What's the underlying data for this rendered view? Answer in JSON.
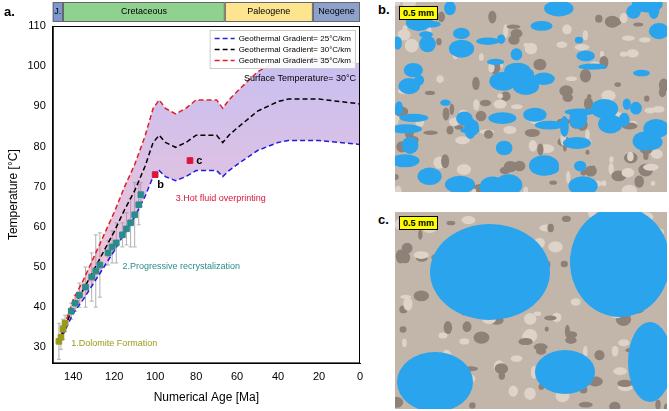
{
  "chart_data": {
    "type": "line",
    "panel": "a.",
    "x_label": "Numerical Age [Ma]",
    "y_label": "Temperature [°C]",
    "xlim": [
      150,
      0
    ],
    "xticks": [
      140,
      120,
      100,
      80,
      60,
      40,
      20,
      0
    ],
    "ylim": [
      110,
      26
    ],
    "yticks": [
      30,
      40,
      50,
      60,
      70,
      80,
      90,
      100,
      110
    ],
    "grid": false,
    "legend": "upper right",
    "note": "Surface Temperature= 30°C",
    "periods": [
      {
        "name": "J.",
        "start": 150,
        "end": 145,
        "color": "#7f97d0"
      },
      {
        "name": "Cretaceous",
        "start": 145,
        "end": 66,
        "color": "#8fd18f"
      },
      {
        "name": "Paleogene",
        "start": 66,
        "end": 23,
        "color": "#fde48f"
      },
      {
        "name": "Neogene",
        "start": 23,
        "end": 0,
        "color": "#8ea0cc"
      }
    ],
    "series": [
      {
        "name": "Geothermal Gradient= 25°C/km",
        "color": "#1f1fe0",
        "line_style": "dashed",
        "x": [
          147,
          140,
          135,
          130,
          125,
          120,
          115,
          110,
          105,
          101,
          98,
          95,
          90,
          85,
          80,
          75,
          70,
          67,
          64,
          60,
          50,
          40,
          35,
          20,
          0
        ],
        "values": [
          31,
          38.5,
          42,
          46,
          50,
          54,
          58.5,
          62.5,
          67.5,
          72.5,
          74,
          72.5,
          71.5,
          72.5,
          74,
          74,
          74,
          72.5,
          74,
          75.5,
          79,
          81,
          81.5,
          81.5,
          80.5
        ]
      },
      {
        "name": "Geothermal Gradient= 30°C/km",
        "color": "#000000",
        "line_style": "dashed",
        "x": [
          147,
          140,
          135,
          130,
          125,
          120,
          115,
          110,
          105,
          101,
          98,
          95,
          90,
          85,
          80,
          75,
          70,
          67,
          64,
          60,
          50,
          40,
          35,
          20,
          0
        ],
        "values": [
          31.2,
          40.2,
          44.4,
          49.2,
          54,
          58.8,
          64.2,
          69,
          75,
          81,
          82.8,
          81,
          79.8,
          81,
          82.8,
          82.8,
          82.8,
          81,
          82.8,
          84.6,
          88.8,
          91.2,
          91.8,
          91.8,
          90.6
        ]
      },
      {
        "name": "Geothermal Gradient= 35°C/km",
        "color": "#e02020",
        "line_style": "dashed",
        "x": [
          147,
          140,
          135,
          130,
          125,
          120,
          115,
          110,
          105,
          101,
          98,
          95,
          90,
          85,
          80,
          75,
          70,
          67,
          64,
          60,
          50,
          40,
          35,
          20,
          0
        ],
        "values": [
          31.4,
          41.9,
          46.8,
          52.4,
          58,
          63.6,
          69.9,
          75.5,
          82.5,
          89.5,
          91.6,
          89.5,
          88.1,
          89.5,
          91.6,
          91.6,
          91.6,
          89.5,
          91.6,
          93.7,
          98.6,
          101.4,
          102.1,
          102.1,
          100.7
        ]
      }
    ],
    "points": [
      {
        "color": "#9a9a1a",
        "marker": "square",
        "x": [
          147,
          146,
          145,
          144
        ],
        "values": [
          31.5,
          32.5,
          34.5,
          36
        ],
        "yerr": [
          4.5,
          3,
          2.5,
          2
        ]
      },
      {
        "color": "#2a8c8c",
        "marker": "square",
        "x": [
          141,
          139,
          137,
          134,
          131,
          129,
          127,
          123,
          121,
          119,
          116,
          114,
          112,
          110,
          108,
          107
        ],
        "values": [
          39,
          41,
          43,
          45,
          47.5,
          49,
          50.5,
          53.5,
          55,
          56,
          58,
          59.5,
          61,
          63,
          65.5,
          68
        ],
        "yerr": [
          2,
          2,
          3,
          5,
          6,
          9,
          8,
          3,
          4,
          5,
          3,
          4,
          6,
          8,
          5,
          3
        ]
      },
      {
        "color": "#dc143c",
        "marker": "square",
        "x": [
          100,
          83
        ],
        "values": [
          73,
          76.5
        ],
        "yerr": [
          0,
          0
        ]
      }
    ],
    "annotations": [
      {
        "text": "1.Dolomite Formation",
        "x": 141,
        "y": 31,
        "color": "#9a9a1a"
      },
      {
        "text": "2.Progressive recrystalization",
        "x": 116,
        "y": 50,
        "color": "#2a8c8c"
      },
      {
        "text": "3.Hot fluid overprinting",
        "x": 90,
        "y": 67,
        "color": "#dc143c"
      },
      {
        "text": "b",
        "x": 99,
        "y": 70.5,
        "color": "#000000"
      },
      {
        "text": "c",
        "x": 80,
        "y": 76.5,
        "color": "#000000"
      }
    ]
  },
  "images": [
    {
      "panel": "b.",
      "scale_bar": "0.5 mm"
    },
    {
      "panel": "c.",
      "scale_bar": "0.5 mm"
    }
  ]
}
